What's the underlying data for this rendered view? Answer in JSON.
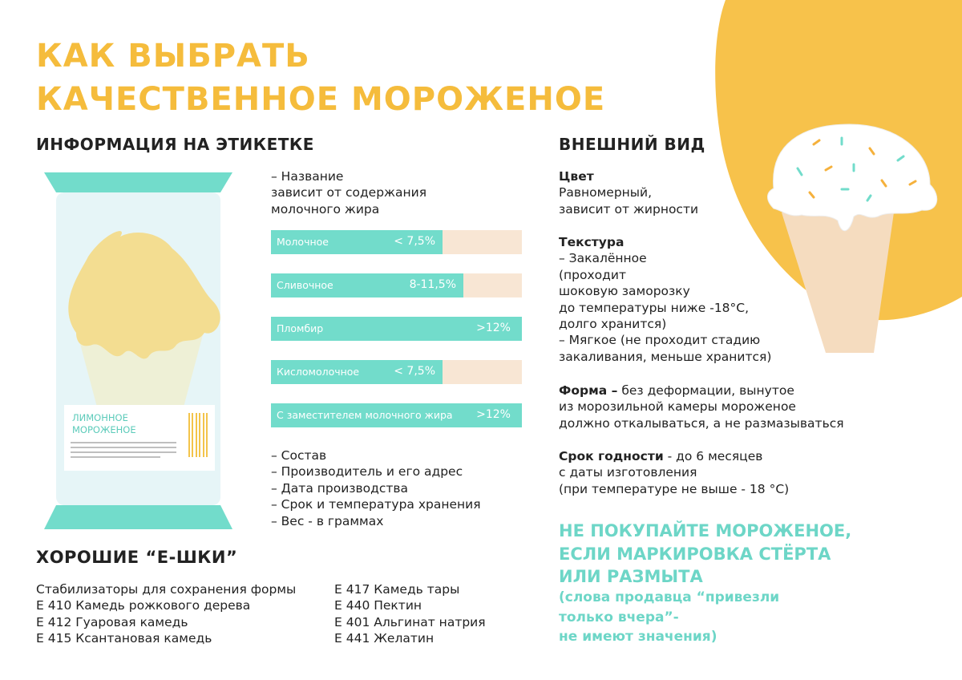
{
  "header": {
    "title_lines": [
      "КАК ВЫБРАТЬ",
      "КАЧЕСТВЕННОЕ  МОРОЖЕНОЕ"
    ]
  },
  "label_info": {
    "heading": "ИНФОРМАЦИЯ  НА  ЭТИКЕТКЕ",
    "intro_lines": [
      "– Название",
      "зависит от содержания",
      "молочного жира"
    ],
    "bars": [
      {
        "name": "Молочное",
        "fat": "< 7,5%"
      },
      {
        "name": "Сливочное",
        "fat": "8-11,5%"
      },
      {
        "name": "Пломбир",
        "fat": ">12%"
      },
      {
        "name": "Кисломолочное",
        "fat": "< 7,5%"
      },
      {
        "name": "С заместителем молочного жира",
        "fat": ">12%"
      }
    ],
    "list": [
      "– Состав",
      "– Производитель и его адрес",
      "– Дата производства",
      "– Срок и температура хранения",
      "– Вес - в граммах"
    ]
  },
  "package": {
    "label_lines": [
      "ЛИМОННОЕ",
      "МОРОЖЕНОЕ"
    ]
  },
  "appearance": {
    "heading": "ВНЕШНИЙ ВИД",
    "color": {
      "title": "Цвет",
      "lines": [
        "Равномерный,",
        "зависит от жирности"
      ]
    },
    "texture": {
      "title": "Текстура",
      "lines": [
        "– Закалённое",
        "(проходит",
        "шоковую заморозку",
        "до температуры ниже -18°C,",
        "долго хранится)",
        "– Мягкое (не проходит стадию",
        "закаливания, меньше хранится)"
      ]
    },
    "shape": {
      "title": "Форма –",
      "lines": [
        " без деформации, вынутое",
        "из морозильной камеры мороженое",
        "должно откалываться, а не размазываться"
      ]
    },
    "shelf_life": {
      "title": "Срок годности",
      "lines": [
        " - до 6 месяцев",
        "с даты изготовления",
        "(при температуре не выше - 18 °C)"
      ]
    }
  },
  "warning": {
    "title_lines": [
      "НЕ ПОКУПАЙТЕ МОРОЖЕНОЕ,",
      "ЕСЛИ МАРКИРОВКА СТЁРТА",
      "ИЛИ РАЗМЫТА"
    ],
    "note_lines": [
      "(слова продавца “привезли",
      "только вчера”-",
      "не имеют значения)"
    ]
  },
  "additives": {
    "heading": "ХОРОШИЕ “Е-ШКИ”",
    "left": [
      "Стабилизаторы для сохранения формы",
      "Е 410 Камедь рожкового дерева",
      "Е 412 Гуаровая камедь",
      "Е 415 Ксантановая камедь"
    ],
    "right": [
      "Е 417 Камедь тары",
      "Е 440 Пектин",
      "Е 401 Альгинат натрия",
      "Е 441 Желатин"
    ]
  }
}
